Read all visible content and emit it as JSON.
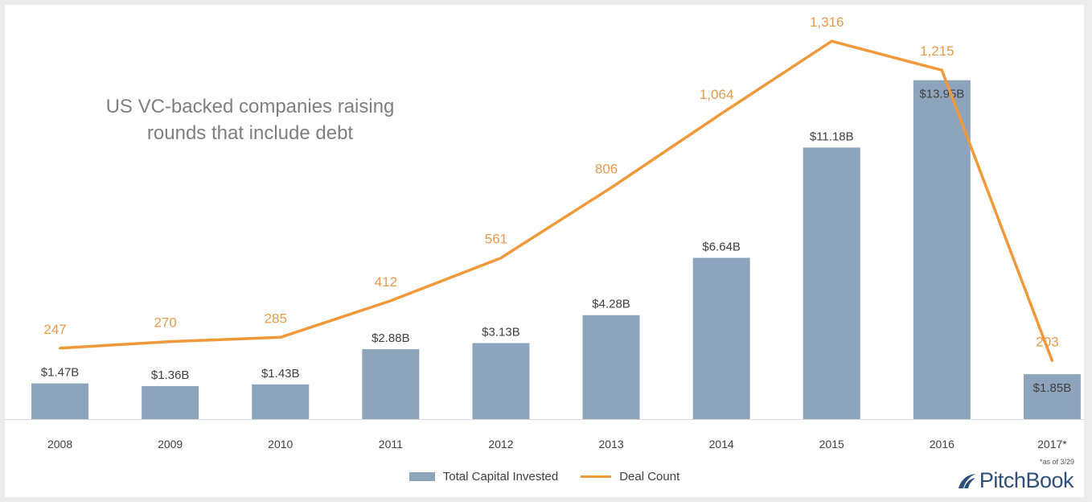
{
  "chart_data": {
    "type": "bar",
    "title": "US VC-backed companies raising rounds that include debt",
    "categories": [
      "2008",
      "2009",
      "2010",
      "2011",
      "2012",
      "2013",
      "2014",
      "2015",
      "2016",
      "2017*"
    ],
    "series": [
      {
        "name": "Total Capital Invested",
        "type": "bar",
        "color": "#8ea4bd",
        "values": [
          1.47,
          1.36,
          1.43,
          2.88,
          3.13,
          4.28,
          6.64,
          11.18,
          13.95,
          1.85
        ],
        "labels": [
          "$1.47B",
          "$1.36B",
          "$1.43B",
          "$2.88B",
          "$3.13B",
          "$4.28B",
          "$6.64B",
          "$11.18B",
          "$13.95B",
          "$1.85B"
        ]
      },
      {
        "name": "Deal Count",
        "type": "line",
        "color": "#f0993a",
        "values": [
          247,
          270,
          285,
          412,
          561,
          806,
          1064,
          1316,
          1215,
          203
        ],
        "labels": [
          "247",
          "270",
          "285",
          "412",
          "561",
          "806",
          "1,064",
          "1,316",
          "1,215",
          "203"
        ]
      }
    ],
    "legend_position": "bottom",
    "grid": false
  },
  "footnote": "*as of 3/29",
  "brand": {
    "name": "PitchBook",
    "color": "#2f4e7d",
    "icon": "pitchbook-logo-icon"
  },
  "colors": {
    "bar_label": "#404040",
    "line_label": "#e69a4a",
    "axis": "#d9d9d9",
    "tick_label": "#404040"
  }
}
